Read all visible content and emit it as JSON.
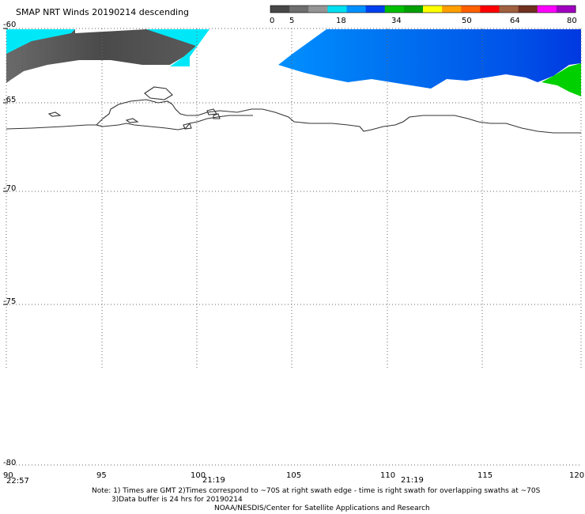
{
  "title": "SMAP NRT Winds  20190214 descending",
  "colorbar": {
    "tick_labels": [
      "0",
      "5",
      "18",
      "34",
      "50",
      "64",
      "80"
    ],
    "colors": [
      "#474747",
      "#6e6e6e",
      "#959595",
      "#00e0f0",
      "#0090ff",
      "#0040f0",
      "#00c000",
      "#00a000",
      "#ffff00",
      "#ffa000",
      "#ff6000",
      "#ff0000",
      "#a06040",
      "#703020",
      "#ff00ff",
      "#a000c0"
    ]
  },
  "axes": {
    "lat_labels": [
      "-60",
      "-65",
      "-70",
      "-75",
      "-80"
    ],
    "lon_labels": [
      "90",
      "95",
      "100",
      "105",
      "110",
      "115",
      "120"
    ]
  },
  "swath_times": {
    "t1": "22:57",
    "t2": "21:19",
    "t3": "21:19"
  },
  "notes": {
    "line1": "Note: 1) Times are GMT 2)Times correspond to ~70S at right swath edge - time is right swath for overlapping swaths at ~70S",
    "line2": "3)Data buffer is 24 hrs for 20190214",
    "line3": "NOAA/NESDIS/Center for Satellite Applications and Research"
  },
  "legend_colors": {
    "gray_wind": "#5a5a5a",
    "cyan_wind": "#00e8f8",
    "blue_wind": "#0070f0",
    "green_wind": "#00d000",
    "coastline": "#333333"
  }
}
